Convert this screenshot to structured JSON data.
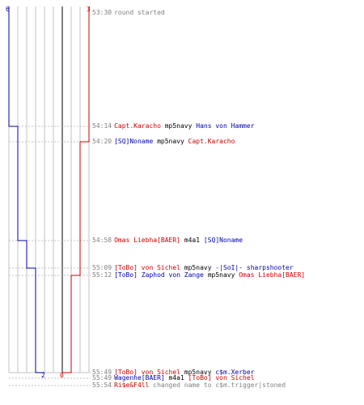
{
  "colors": {
    "red_team": "#cc0000",
    "blue_team": "#0000aa",
    "grid": "#c0c0c0",
    "center": "#808080",
    "event_line": "#c0c0c0"
  },
  "chart_data": {
    "type": "line",
    "start_labels": {
      "blue": "6",
      "red": "3"
    },
    "end_labels": {
      "blue": "2",
      "red": "0"
    },
    "blue_series": [
      6,
      5,
      4,
      3,
      2
    ],
    "red_series": [
      3,
      2,
      1,
      0
    ]
  },
  "events": [
    {
      "time": "53:30",
      "parts": [
        {
          "text": "round started",
          "cls": "gray"
        }
      ]
    },
    {
      "time": "54:14",
      "parts": [
        {
          "text": "Capt.Karacho",
          "cls": "red"
        },
        {
          "text": " mp5navy ",
          "cls": "blk"
        },
        {
          "text": "Hans von Hammer",
          "cls": "blue"
        }
      ]
    },
    {
      "time": "54:20",
      "parts": [
        {
          "text": "[SQ]Noname",
          "cls": "blue"
        },
        {
          "text": " mp5navy ",
          "cls": "blk"
        },
        {
          "text": "Capt.Karacho",
          "cls": "red"
        }
      ]
    },
    {
      "time": "54:58",
      "parts": [
        {
          "text": "Omas Liebha[BAER]",
          "cls": "red"
        },
        {
          "text": " m4a1 ",
          "cls": "blk"
        },
        {
          "text": "[SQ]Noname",
          "cls": "blue"
        }
      ]
    },
    {
      "time": "55:09",
      "parts": [
        {
          "text": "[ToBo] von Sichel",
          "cls": "red"
        },
        {
          "text": " mp5navy ",
          "cls": "blk"
        },
        {
          "text": "-|SoI|- sharpshooter",
          "cls": "blue"
        }
      ]
    },
    {
      "time": "55:12",
      "parts": [
        {
          "text": "[ToBo] Zaphod von Zange",
          "cls": "blue"
        },
        {
          "text": " mp5navy ",
          "cls": "blk"
        },
        {
          "text": "Omas Liebha[BAER]",
          "cls": "red"
        }
      ]
    },
    {
      "time": "55:49",
      "parts": [
        {
          "text": "[ToBo] von Sichel",
          "cls": "red"
        },
        {
          "text": " mp5navy ",
          "cls": "blk"
        },
        {
          "text": "c$m.Xerber",
          "cls": "blue"
        }
      ]
    },
    {
      "time": "55:49",
      "parts": [
        {
          "text": "Wagenhe[BAER]",
          "cls": "blue"
        },
        {
          "text": " m4a1 ",
          "cls": "blk"
        },
        {
          "text": "[ToBo] von Sichel",
          "cls": "red"
        }
      ]
    },
    {
      "time": "55:54",
      "parts": [
        {
          "text": "Ri$e&F4ll",
          "cls": "red"
        },
        {
          "text": " changed name to c$m.trigger|stoned",
          "cls": "gray"
        }
      ]
    }
  ]
}
